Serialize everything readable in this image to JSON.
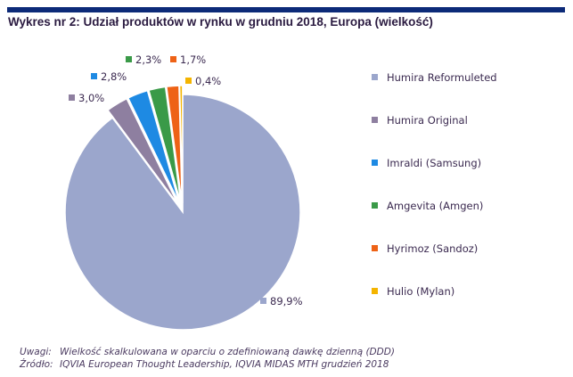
{
  "title": "Wykres nr 2: Udział produktów w rynku w grudniu 2018, Europa (wielkość)",
  "chart_data": {
    "type": "pie",
    "title": "Wykres nr 2: Udział produktów w rynku w grudniu 2018, Europa (wielkość)",
    "legend_position": "right",
    "slices": [
      {
        "name": "Humira Reformuleted",
        "value": 89.9,
        "label": "89,9%",
        "color": "#9ba6cc"
      },
      {
        "name": "Humira Original",
        "value": 3.0,
        "label": "3,0%",
        "color": "#8e7fa0"
      },
      {
        "name": "Imraldi (Samsung)",
        "value": 2.8,
        "label": "2,8%",
        "color": "#1e8ae3"
      },
      {
        "name": "Amgevita (Amgen)",
        "value": 2.3,
        "label": "2,3%",
        "color": "#3a9a48"
      },
      {
        "name": "Hyrimoz (Sandoz)",
        "value": 1.7,
        "label": "1,7%",
        "color": "#ee6216"
      },
      {
        "name": "Hulio (Mylan)",
        "value": 0.4,
        "label": "0,4%",
        "color": "#f4b400"
      }
    ]
  },
  "notes": {
    "uwagi_key": "Uwagi:",
    "uwagi": "Wielkość skalkulowana w oparciu o zdefiniowaną dawkę dzienną (DDD)",
    "zrodlo_key": "Źródło:",
    "zrodlo": "IQVIA European Thought Leadership, IQVIA MIDAS MTH grudzień 2018"
  }
}
